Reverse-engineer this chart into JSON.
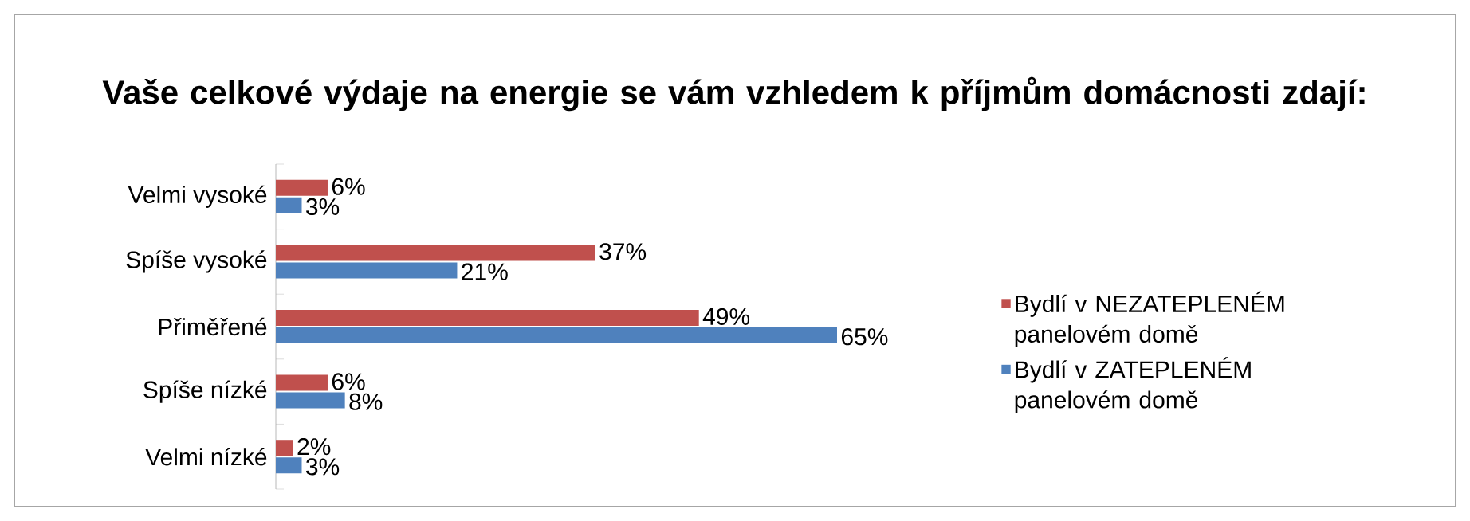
{
  "chart_data": {
    "type": "bar",
    "orientation": "horizontal",
    "title": "Vaše celkové výdaje na energie se vám vzhledem k příjmům domácnosti zdají:",
    "categories": [
      "Velmi vysoké",
      "Spíše vysoké",
      "Přiměřené",
      "Spíše nízké",
      "Velmi nízké"
    ],
    "series": [
      {
        "name": "Bydlí v NEZATEPLENÉM panelovém domě",
        "color": "#c0504d",
        "values": [
          6,
          37,
          49,
          6,
          2
        ],
        "value_labels": [
          "6%",
          "37%",
          "49%",
          "6%",
          "2%"
        ]
      },
      {
        "name": "Bydlí v ZATEPLENÉM panelovém domě",
        "color": "#4f81bd",
        "values": [
          3,
          21,
          65,
          8,
          3
        ],
        "value_labels": [
          "3%",
          "21%",
          "65%",
          "8%",
          "3%"
        ]
      }
    ],
    "legend": "right",
    "tick_labels": "y"
  }
}
